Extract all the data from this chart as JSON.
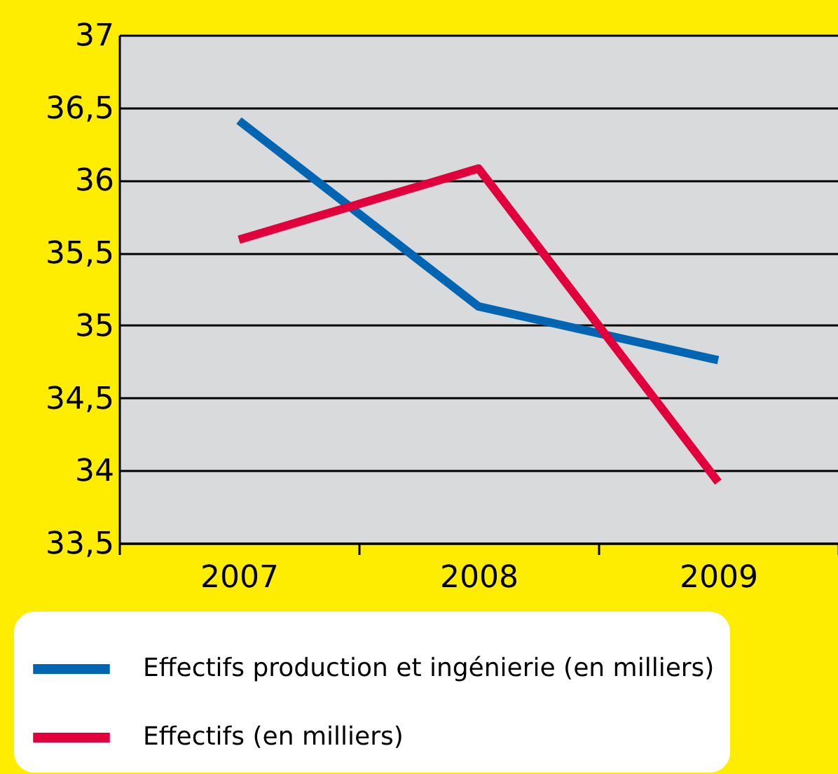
{
  "chart_data": {
    "type": "line",
    "categories": [
      "2007",
      "2008",
      "2009"
    ],
    "series": [
      {
        "name": "Effectifs production et ingénierie (en milliers)",
        "color": "#0066b3",
        "values": [
          36.41,
          35.13,
          34.76
        ]
      },
      {
        "name": "Effectifs (en milliers)",
        "color": "#e2003c",
        "values": [
          35.59,
          36.08,
          33.92
        ]
      }
    ],
    "ylim": [
      33.5,
      37
    ],
    "yticks": [
      {
        "value": 33.5,
        "label": "33,5"
      },
      {
        "value": 34,
        "label": "34"
      },
      {
        "value": 34.5,
        "label": "34,5"
      },
      {
        "value": 35,
        "label": "35"
      },
      {
        "value": 35.5,
        "label": "35,5"
      },
      {
        "value": 36,
        "label": "36"
      },
      {
        "value": 36.5,
        "label": "36,5"
      },
      {
        "value": 37,
        "label": "37"
      }
    ],
    "grid": "y",
    "legend": "bottom",
    "marker": "none",
    "line_style": "solid"
  }
}
